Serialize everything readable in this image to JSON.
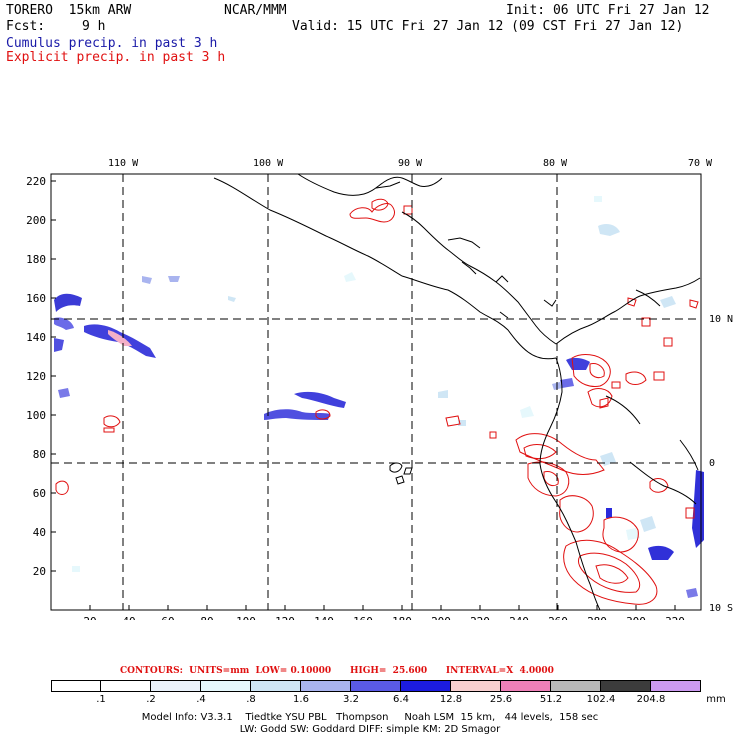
{
  "header": {
    "title": "TORERO  15km ARW",
    "center": "NCAR/MMM",
    "init": "Init: 06 UTC Fri 27 Jan 12",
    "fcst_label": "Fcst:",
    "fcst_hours": "9 h",
    "valid": "Valid: 15 UTC Fri 27 Jan 12 (09 CST Fri 27 Jan 12)",
    "cumulus_label": "Cumulus precip. in past 3 h",
    "explicit_label": "Explicit precip. in past 3 h"
  },
  "map": {
    "lon_labels": [
      "110 W",
      "100 W",
      "90 W",
      "80 W",
      "70 W"
    ],
    "lat_labels": [
      "10 N",
      "0",
      "10 S"
    ],
    "y_ticks": [
      "220",
      "200",
      "180",
      "160",
      "140",
      "120",
      "100",
      "80",
      "60",
      "40",
      "20"
    ],
    "x_ticks": [
      "20",
      "40",
      "60",
      "80",
      "100",
      "120",
      "140",
      "160",
      "180",
      "200",
      "220",
      "240",
      "260",
      "280",
      "300",
      "320"
    ],
    "colors": {
      "cumulus": "#1a1aa8",
      "explicit": "#e01010",
      "coast": "#000000",
      "grid": "#000000"
    }
  },
  "legend": {
    "contour_text": "CONTOURS:  UNITS=mm  LOW= 0.10000      HIGH=  25.600      INTERVAL=X  4.0000",
    "levels": [
      ".1",
      ".2",
      ".4",
      ".8",
      "1.6",
      "3.2",
      "6.4",
      "12.8",
      "25.6",
      "51.2",
      "102.4",
      "204.8"
    ],
    "unit": "mm",
    "colors": [
      "#ffffff",
      "#ffffff",
      "#eaf2fb",
      "#e6f8fc",
      "#cfe6f5",
      "#a9b4ef",
      "#5a5ae6",
      "#1c1ce0",
      "#f8d0d0",
      "#ef80b8",
      "#b8b8b8",
      "#3c3c3c",
      "#cc9af0"
    ]
  },
  "footer": {
    "line1": "Model Info: V3.3.1    Tiedtke YSU PBL   Thompson     Noah LSM  15 km,   44 levels,  158 sec",
    "line2": "LW: Godd SW: Goddard DIFF: simple KM: 2D Smagor"
  }
}
